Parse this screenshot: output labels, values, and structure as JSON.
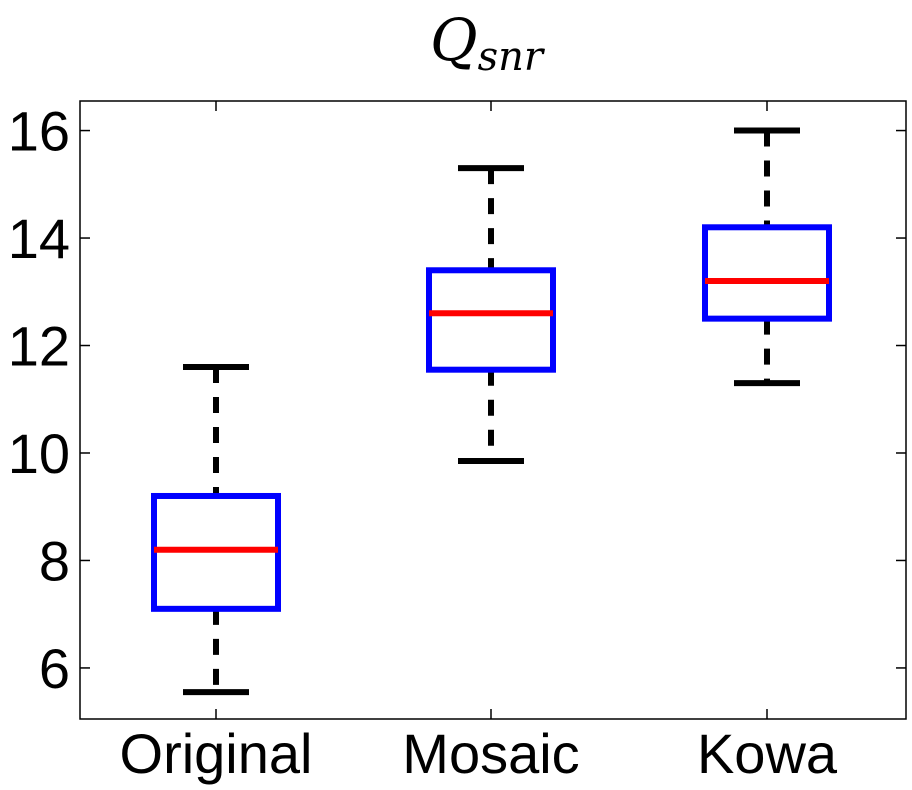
{
  "chart_data": {
    "type": "boxplot",
    "title_main": "Q",
    "title_sub": "snr",
    "categories": [
      "Original",
      "Mosaic",
      "Kowa"
    ],
    "boxes": [
      {
        "whisker_low": 5.55,
        "q1": 7.1,
        "median": 8.2,
        "q3": 9.2,
        "whisker_high": 11.6
      },
      {
        "whisker_low": 9.85,
        "q1": 11.55,
        "median": 12.6,
        "q3": 13.4,
        "whisker_high": 15.3
      },
      {
        "whisker_low": 11.3,
        "q1": 12.5,
        "median": 13.2,
        "q3": 14.2,
        "whisker_high": 16.0
      }
    ],
    "yticks": [
      6,
      8,
      10,
      12,
      14,
      16
    ],
    "ylim": [
      5.05,
      16.55
    ],
    "colors": {
      "box": "#0000ff",
      "median": "#ff0000",
      "whisker": "#000000"
    }
  }
}
